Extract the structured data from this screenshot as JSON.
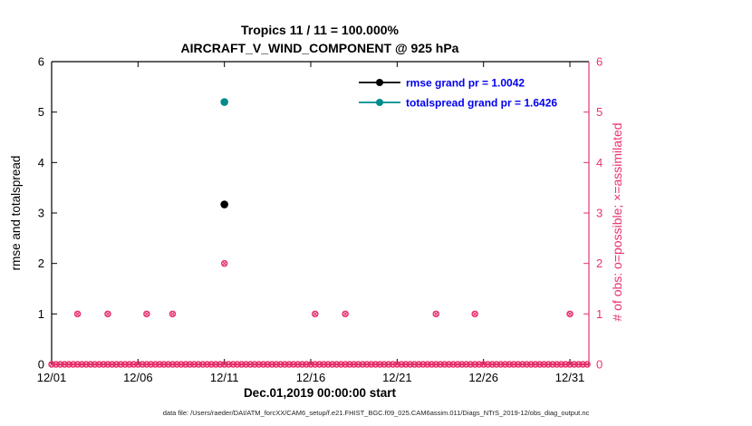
{
  "title": {
    "line1": "Tropics 11 / 11 = 100.000%",
    "line2": "AIRCRAFT_V_WIND_COMPONENT @ 925 hPa"
  },
  "axes": {
    "left_label": "rmse and totalspread",
    "right_label": "# of obs: o=possible; ×=assimilated",
    "x_label": "Dec.01,2019 00:00:00 start",
    "y_ticks": [
      0,
      1,
      2,
      3,
      4,
      5,
      6
    ],
    "x_ticks": [
      {
        "day": 0,
        "label": "12/01"
      },
      {
        "day": 5,
        "label": "12/06"
      },
      {
        "day": 10,
        "label": "12/11"
      },
      {
        "day": 15,
        "label": "12/16"
      },
      {
        "day": 20,
        "label": "12/21"
      },
      {
        "day": 25,
        "label": "12/26"
      },
      {
        "day": 30,
        "label": "12/31"
      }
    ]
  },
  "legend": [
    {
      "label": "rmse grand pr = 1.0042",
      "series": "rmse"
    },
    {
      "label": "totalspread grand pr = 1.6426",
      "series": "totalspread"
    }
  ],
  "colors": {
    "rmse": "#000000",
    "totalspread": "#008b8b",
    "obs": "#e8336e",
    "legend_text": "#0000ee",
    "axis": "#000000",
    "footer_text": "#222222"
  },
  "footer": "data file: /Users/raeder/DAI/ATM_forcXX/CAM6_setup/f.e21.FHIST_BGC.f09_025.CAM6assim.011/Diags_NTrS_2019-12/obs_diag_output.nc",
  "chart_data": {
    "type": "scatter",
    "x_axis": "days since Dec.01,2019 00:00:00",
    "xlim": [
      0,
      31.1
    ],
    "ylim": [
      0,
      6
    ],
    "grid": false,
    "legend_position": "top-center-inside",
    "rmse_points": [
      {
        "x": 10,
        "y": 3.17
      }
    ],
    "totalspread_points": [
      {
        "x": 10,
        "y": 5.2
      }
    ],
    "obs_points": {
      "y0_run": {
        "from": 0,
        "to": 31,
        "step": 0.25
      },
      "y1_days": [
        1.5,
        3.25,
        5.5,
        7,
        15.25,
        17,
        22.25,
        24.5,
        30
      ],
      "y2_days": [
        10
      ]
    }
  }
}
